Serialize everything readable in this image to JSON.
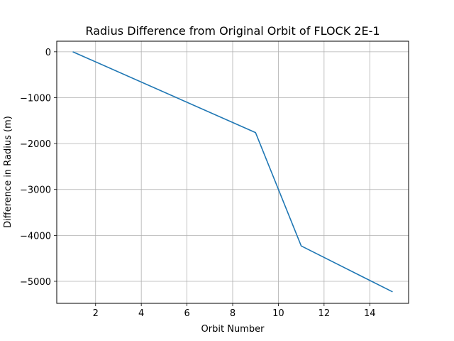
{
  "chart_data": {
    "type": "line",
    "title": "Radius Difference from Original Orbit of FLOCK 2E-1",
    "xlabel": "Orbit Number",
    "ylabel": "Difference in Radius (m)",
    "xlim": [
      0.3,
      15.7
    ],
    "ylim": [
      -5480,
      230
    ],
    "xticks": [
      2,
      4,
      6,
      8,
      10,
      12,
      14
    ],
    "yticks": [
      0,
      -1000,
      -2000,
      -3000,
      -4000,
      -5000
    ],
    "xtick_labels": [
      "2",
      "4",
      "6",
      "8",
      "10",
      "12",
      "14"
    ],
    "ytick_labels": [
      "0",
      "−1000",
      "−2000",
      "−3000",
      "−4000",
      "−5000"
    ],
    "grid": true,
    "series": [
      {
        "color": "#1f77b4",
        "x": [
          1,
          9,
          11,
          15
        ],
        "y": [
          0,
          -1760,
          -4230,
          -5230
        ]
      }
    ]
  }
}
